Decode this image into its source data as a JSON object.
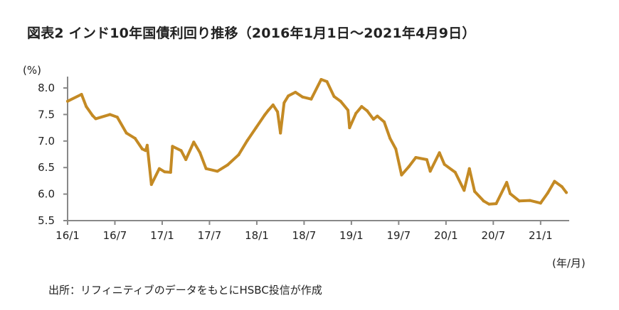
{
  "chart_data": {
    "type": "line",
    "title": "図表2  インド10年国債利回り推移（2016年1月1日～2021年4月9日）",
    "ylabel": "(%)",
    "xlabel": "(年/月)",
    "ylim": [
      5.5,
      8.0
    ],
    "yticks": [
      "8.0",
      "7.5",
      "7.0",
      "6.5",
      "6.0",
      "5.5"
    ],
    "xticks": [
      "16/1",
      "16/7",
      "17/1",
      "17/7",
      "18/1",
      "18/7",
      "19/1",
      "19/7",
      "20/1",
      "20/7",
      "21/1"
    ],
    "grid": false,
    "line_color": "#c48a24",
    "series": [
      {
        "points": [
          [
            "2016-01-01",
            7.75
          ],
          [
            "2016-02-24",
            7.88
          ],
          [
            "2016-03-12",
            7.65
          ],
          [
            "2016-04-06",
            7.48
          ],
          [
            "2016-04-18",
            7.42
          ],
          [
            "2016-06-12",
            7.5
          ],
          [
            "2016-07-10",
            7.45
          ],
          [
            "2016-08-15",
            7.15
          ],
          [
            "2016-09-18",
            7.05
          ],
          [
            "2016-10-15",
            6.85
          ],
          [
            "2016-10-28",
            6.82
          ],
          [
            "2016-11-04",
            6.92
          ],
          [
            "2016-11-20",
            6.18
          ],
          [
            "2016-12-20",
            6.48
          ],
          [
            "2017-01-10",
            6.42
          ],
          [
            "2017-02-03",
            6.41
          ],
          [
            "2017-02-10",
            6.9
          ],
          [
            "2017-03-13",
            6.82
          ],
          [
            "2017-04-01",
            6.65
          ],
          [
            "2017-05-01",
            6.98
          ],
          [
            "2017-05-25",
            6.78
          ],
          [
            "2017-06-18",
            6.48
          ],
          [
            "2017-08-01",
            6.43
          ],
          [
            "2017-09-10",
            6.55
          ],
          [
            "2017-10-22",
            6.74
          ],
          [
            "2017-11-25",
            7.01
          ],
          [
            "2017-12-28",
            7.25
          ],
          [
            "2018-01-31",
            7.49
          ],
          [
            "2018-02-15",
            7.58
          ],
          [
            "2018-03-03",
            7.68
          ],
          [
            "2018-03-20",
            7.55
          ],
          [
            "2018-04-01",
            7.15
          ],
          [
            "2018-04-15",
            7.72
          ],
          [
            "2018-05-01",
            7.85
          ],
          [
            "2018-05-28",
            7.92
          ],
          [
            "2018-06-25",
            7.83
          ],
          [
            "2018-07-28",
            7.79
          ],
          [
            "2018-09-06",
            8.16
          ],
          [
            "2018-09-28",
            8.12
          ],
          [
            "2018-10-25",
            7.84
          ],
          [
            "2018-11-20",
            7.75
          ],
          [
            "2018-12-18",
            7.58
          ],
          [
            "2018-12-24",
            7.25
          ],
          [
            "2019-01-18",
            7.52
          ],
          [
            "2019-02-10",
            7.65
          ],
          [
            "2019-03-01",
            7.57
          ],
          [
            "2019-03-25",
            7.41
          ],
          [
            "2019-04-10",
            7.47
          ],
          [
            "2019-05-06",
            7.36
          ],
          [
            "2019-05-28",
            7.05
          ],
          [
            "2019-06-20",
            6.85
          ],
          [
            "2019-07-12",
            6.36
          ],
          [
            "2019-08-10",
            6.52
          ],
          [
            "2019-09-06",
            6.69
          ],
          [
            "2019-10-18",
            6.65
          ],
          [
            "2019-11-01",
            6.43
          ],
          [
            "2019-12-06",
            6.78
          ],
          [
            "2019-12-25",
            6.56
          ],
          [
            "2020-02-06",
            6.41
          ],
          [
            "2020-03-10",
            6.07
          ],
          [
            "2020-03-30",
            6.48
          ],
          [
            "2020-04-20",
            6.05
          ],
          [
            "2020-05-24",
            5.87
          ],
          [
            "2020-06-15",
            5.81
          ],
          [
            "2020-07-12",
            5.82
          ],
          [
            "2020-08-22",
            6.22
          ],
          [
            "2020-09-05",
            6.01
          ],
          [
            "2020-10-10",
            5.87
          ],
          [
            "2020-11-20",
            5.88
          ],
          [
            "2021-01-01",
            5.83
          ],
          [
            "2021-01-28",
            6.02
          ],
          [
            "2021-02-24",
            6.24
          ],
          [
            "2021-03-22",
            6.14
          ],
          [
            "2021-04-09",
            6.03
          ]
        ]
      }
    ]
  },
  "source": "出所：リフィニティブのデータをもとにHSBC投信が作成"
}
